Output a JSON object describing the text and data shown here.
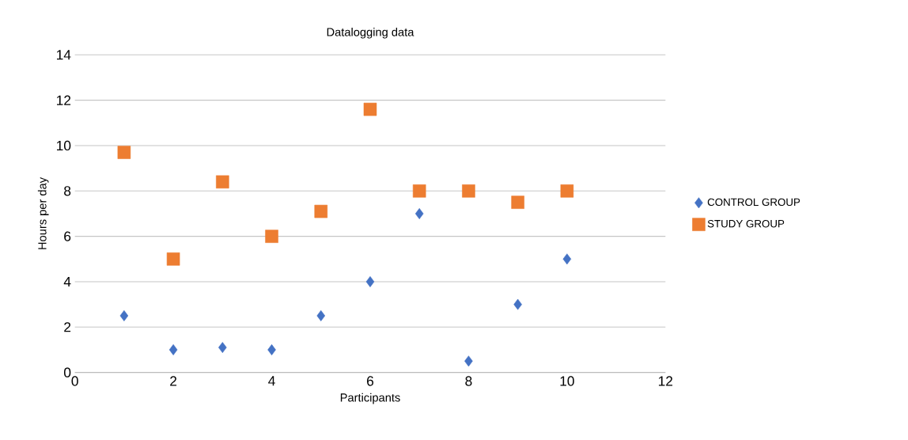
{
  "chart_data": {
    "type": "scatter",
    "title": "Datalogging data",
    "xlabel": "Participants",
    "ylabel": "Hours per day",
    "x": [
      1,
      2,
      3,
      4,
      5,
      6,
      7,
      8,
      9,
      10
    ],
    "series": [
      {
        "name": "CONTROL GROUP",
        "color": "#4472c4",
        "marker": "diamond",
        "values": [
          2.5,
          1.0,
          1.1,
          1.0,
          2.5,
          4.0,
          7.0,
          0.5,
          3.0,
          5.0
        ]
      },
      {
        "name": "STUDY GROUP",
        "color": "#ed7d31",
        "marker": "square",
        "values": [
          9.7,
          5.0,
          8.4,
          6.0,
          7.1,
          11.6,
          8.0,
          8.0,
          7.5,
          8.0
        ]
      }
    ],
    "xlim": [
      0,
      12
    ],
    "xticks": [
      0,
      2,
      4,
      6,
      8,
      10,
      12
    ],
    "ylim": [
      0,
      14
    ],
    "yticks": [
      0,
      2,
      4,
      6,
      8,
      10,
      12,
      14
    ],
    "grid": "y",
    "legend": "right"
  }
}
